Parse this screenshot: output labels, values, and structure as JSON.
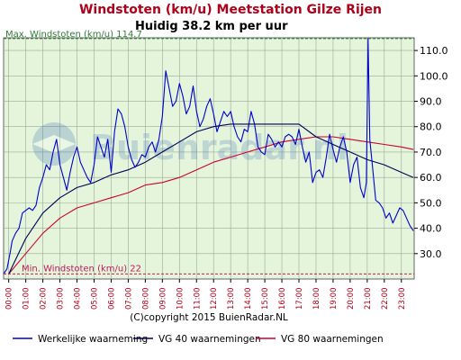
{
  "chart_data": {
    "type": "line",
    "title": "Windstoten (km/u) Meetstation Gilze Rijen",
    "subtitle": "Huidig 38.2 km per uur",
    "watermark": "Buienradar.nl",
    "copyright": "(C)copyright 2015 BuienRadar.NL",
    "annotations": {
      "max_label": "Max. Windstoten (km/u) 114.7",
      "max_value": 114.7,
      "min_label": "Min. Windstoten (km/u) 22",
      "min_value": 22
    },
    "ylim": [
      20,
      115
    ],
    "y_ticks": [
      30,
      40,
      50,
      60,
      70,
      80,
      90,
      100,
      110
    ],
    "y_tick_labels": [
      "30.0",
      "40.0",
      "50.0",
      "60.0",
      "70.0",
      "80.0",
      "90.0",
      "100.0",
      "110.0"
    ],
    "x_range": [
      -0.3,
      23.75
    ],
    "x_ticks": [
      0,
      1,
      2,
      3,
      4,
      5,
      6,
      7,
      8,
      9,
      10,
      11,
      12,
      13,
      14,
      15,
      16,
      17,
      18,
      19,
      20,
      21,
      22,
      23
    ],
    "x_tick_labels": [
      "00:00",
      "01:00",
      "02:00",
      "03:00",
      "04:00",
      "05:00",
      "06:00",
      "07:00",
      "08:00",
      "09:00",
      "10:00",
      "11:00",
      "12:00",
      "13:00",
      "14:00",
      "15:00",
      "16:00",
      "17:00",
      "18:00",
      "19:00",
      "20:00",
      "21:00",
      "22:00",
      "23:00"
    ],
    "series": [
      {
        "name": "Werkelijke waarneming",
        "color": "#0000cc",
        "x": [
          -0.3,
          -0.1,
          0.1,
          0.2,
          0.4,
          0.6,
          0.8,
          1.0,
          1.2,
          1.4,
          1.6,
          1.8,
          2.0,
          2.2,
          2.4,
          2.6,
          2.8,
          3.0,
          3.2,
          3.4,
          3.6,
          3.8,
          4.0,
          4.2,
          4.4,
          4.6,
          4.8,
          5.0,
          5.2,
          5.4,
          5.6,
          5.8,
          6.0,
          6.2,
          6.4,
          6.6,
          6.8,
          7.0,
          7.2,
          7.4,
          7.6,
          7.8,
          8.0,
          8.2,
          8.4,
          8.6,
          8.8,
          9.0,
          9.2,
          9.4,
          9.6,
          9.8,
          10.0,
          10.2,
          10.4,
          10.6,
          10.8,
          11.0,
          11.2,
          11.4,
          11.6,
          11.8,
          12.0,
          12.2,
          12.4,
          12.6,
          12.8,
          13.0,
          13.2,
          13.4,
          13.6,
          13.8,
          14.0,
          14.2,
          14.4,
          14.6,
          14.8,
          15.0,
          15.2,
          15.4,
          15.6,
          15.8,
          16.0,
          16.2,
          16.4,
          16.6,
          16.8,
          17.0,
          17.2,
          17.4,
          17.6,
          17.8,
          18.0,
          18.2,
          18.4,
          18.6,
          18.8,
          19.0,
          19.2,
          19.4,
          19.6,
          19.8,
          20.0,
          20.2,
          20.4,
          20.6,
          20.8,
          20.95,
          21.05,
          21.15,
          21.3,
          21.5,
          21.7,
          21.9,
          22.1,
          22.3,
          22.5,
          22.7,
          22.9,
          23.1,
          23.3,
          23.5,
          23.7
        ],
        "values": [
          22,
          24,
          31,
          35,
          38,
          40,
          46,
          47,
          48,
          47,
          49,
          56,
          60,
          65,
          63,
          70,
          75,
          65,
          60,
          55,
          62,
          68,
          72,
          66,
          63,
          60,
          58,
          65,
          76,
          72,
          68,
          75,
          62,
          78,
          87,
          85,
          80,
          72,
          67,
          64,
          66,
          69,
          68,
          72,
          74,
          70,
          75,
          84,
          102,
          95,
          88,
          90,
          97,
          92,
          85,
          88,
          96,
          86,
          80,
          83,
          88,
          91,
          85,
          78,
          82,
          86,
          84,
          86,
          80,
          76,
          74,
          79,
          78,
          86,
          81,
          72,
          70,
          69,
          77,
          75,
          72,
          74,
          72,
          76,
          77,
          76,
          73,
          79,
          72,
          66,
          70,
          58,
          62,
          63,
          60,
          68,
          77,
          71,
          66,
          72,
          76,
          70,
          58,
          65,
          68,
          56,
          52,
          58,
          114.7,
          75,
          65,
          51,
          50,
          48,
          44,
          46,
          42,
          45,
          48,
          47,
          44,
          41,
          39
        ]
      },
      {
        "name": "VG 40 waarnemingen",
        "color": "#000055",
        "x": [
          0,
          1,
          2,
          3,
          4,
          5,
          6,
          7,
          8,
          9,
          10,
          11,
          12,
          13,
          14,
          15,
          16,
          17,
          18,
          19,
          20,
          21,
          22,
          23,
          23.7
        ],
        "values": [
          22,
          36,
          46,
          52,
          56,
          58,
          61,
          63,
          66,
          70,
          74,
          78,
          80,
          81,
          81,
          81,
          81,
          81,
          76,
          73,
          70,
          67,
          65,
          62,
          60
        ]
      },
      {
        "name": "VG 80 waarnemingen",
        "color": "#cc0033",
        "x": [
          0,
          1,
          2,
          3,
          4,
          5,
          6,
          7,
          8,
          9,
          10,
          11,
          12,
          13,
          14,
          15,
          16,
          17,
          18,
          19,
          20,
          21,
          22,
          23,
          23.7
        ],
        "values": [
          22,
          30,
          38,
          44,
          48,
          50,
          52,
          54,
          57,
          58,
          60,
          63,
          66,
          68,
          70,
          72,
          74,
          75,
          76,
          76,
          75,
          74,
          73,
          72,
          71
        ]
      }
    ]
  }
}
